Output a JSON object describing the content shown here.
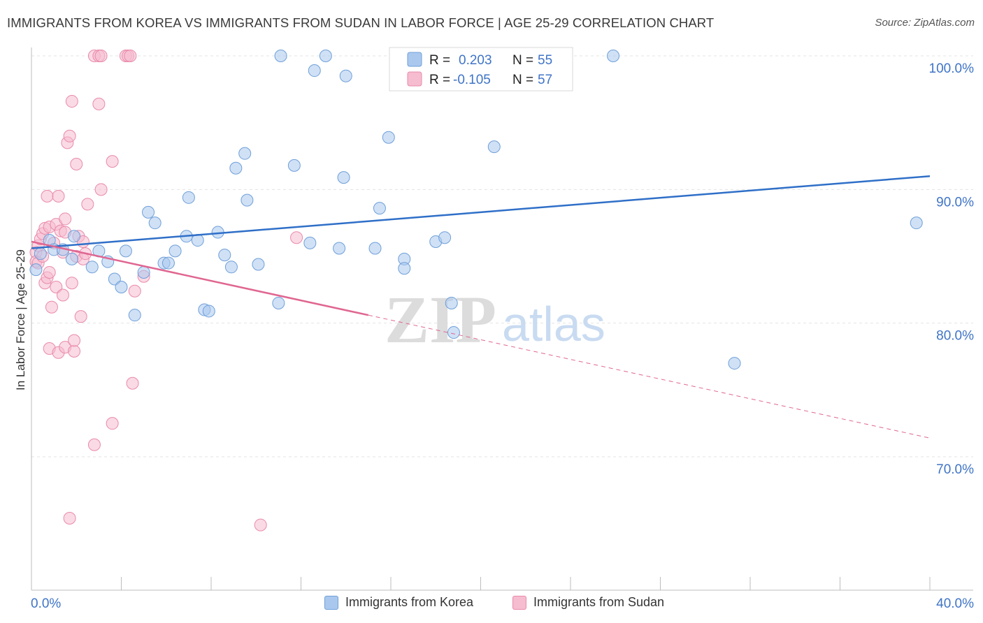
{
  "header": {
    "title": "IMMIGRANTS FROM KOREA VS IMMIGRANTS FROM SUDAN IN LABOR FORCE | AGE 25-29 CORRELATION CHART",
    "source": "Source: ZipAtlas.com"
  },
  "watermark": {
    "zip": "ZIP",
    "atlas": "atlas"
  },
  "legend_top": {
    "rows": [
      {
        "r_label": "R =",
        "r_value": "0.203",
        "n_label": "N =",
        "n_value": "55"
      },
      {
        "r_label": "R =",
        "r_value": "-0.105",
        "n_label": "N =",
        "n_value": "57"
      }
    ]
  },
  "colors": {
    "korea_fill": "#aac8ee",
    "korea_stroke": "#6f9fd8",
    "korea_line": "#2f6fc8",
    "sudan_fill": "#f6bccf",
    "sudan_stroke": "#e98aab",
    "sudan_line": "#e06691",
    "axis_text": "#3f74c7",
    "grid": "#e3e3e3"
  },
  "chart_data": {
    "type": "scatter",
    "title": "IMMIGRANTS FROM KOREA VS IMMIGRANTS FROM SUDAN IN LABOR FORCE | AGE 25-29 CORRELATION CHART",
    "xlabel": "",
    "ylabel": "In Labor Force | Age 25-29",
    "xlim": [
      0,
      40
    ],
    "ylim": [
      61.5,
      101.5
    ],
    "x_tick_labels": [
      "0.0%",
      "40.0%"
    ],
    "y_ticks": [
      70,
      80,
      90,
      100
    ],
    "y_tick_labels": [
      "70.0%",
      "80.0%",
      "90.0%",
      "100.0%"
    ],
    "grid": true,
    "series": [
      {
        "name": "Immigrants from Korea",
        "R": 0.203,
        "N": 55,
        "trend": {
          "x0": 0,
          "y0": 85.6,
          "x1": 40,
          "y1": 91.0
        },
        "points": [
          [
            0.2,
            84.0
          ],
          [
            0.4,
            85.2
          ],
          [
            0.8,
            86.2
          ],
          [
            1.0,
            85.5
          ],
          [
            1.4,
            85.5
          ],
          [
            1.8,
            84.8
          ],
          [
            1.9,
            86.5
          ],
          [
            2.7,
            84.2
          ],
          [
            3.0,
            85.4
          ],
          [
            3.4,
            84.6
          ],
          [
            3.7,
            83.3
          ],
          [
            4.0,
            82.7
          ],
          [
            4.2,
            85.4
          ],
          [
            4.6,
            80.6
          ],
          [
            5.0,
            83.8
          ],
          [
            5.2,
            88.3
          ],
          [
            5.5,
            87.5
          ],
          [
            5.9,
            84.5
          ],
          [
            6.1,
            84.5
          ],
          [
            6.4,
            85.4
          ],
          [
            6.9,
            86.5
          ],
          [
            7.0,
            89.4
          ],
          [
            7.4,
            86.2
          ],
          [
            7.7,
            81.0
          ],
          [
            7.9,
            80.9
          ],
          [
            8.3,
            86.8
          ],
          [
            8.6,
            85.1
          ],
          [
            8.9,
            84.2
          ],
          [
            9.1,
            91.6
          ],
          [
            9.5,
            92.7
          ],
          [
            9.6,
            89.2
          ],
          [
            10.1,
            84.4
          ],
          [
            11.0,
            81.5
          ],
          [
            11.1,
            100.0
          ],
          [
            11.7,
            91.8
          ],
          [
            12.4,
            86.0
          ],
          [
            12.6,
            98.9
          ],
          [
            13.1,
            100.0
          ],
          [
            13.7,
            85.6
          ],
          [
            13.9,
            90.9
          ],
          [
            14.0,
            98.5
          ],
          [
            15.3,
            85.6
          ],
          [
            15.5,
            88.6
          ],
          [
            15.9,
            93.9
          ],
          [
            16.6,
            84.8
          ],
          [
            16.6,
            84.1
          ],
          [
            17.2,
            100.0
          ],
          [
            18.0,
            86.1
          ],
          [
            18.4,
            86.4
          ],
          [
            18.7,
            81.5
          ],
          [
            18.8,
            79.3
          ],
          [
            20.6,
            93.2
          ],
          [
            25.9,
            100.0
          ],
          [
            31.3,
            77.0
          ],
          [
            39.4,
            87.5
          ]
        ]
      },
      {
        "name": "Immigrants from Sudan",
        "R": -0.105,
        "N": 57,
        "trend": {
          "x0": 0,
          "y0": 86.1,
          "x1": 15.0,
          "y1": 80.6
        },
        "trend_ext": {
          "x0": 15.0,
          "y0": 80.6,
          "x1": 40,
          "y1": 71.4
        },
        "points": [
          [
            0.2,
            85.3
          ],
          [
            0.2,
            84.6
          ],
          [
            0.3,
            85.8
          ],
          [
            0.3,
            84.5
          ],
          [
            0.4,
            86.3
          ],
          [
            0.5,
            85.0
          ],
          [
            0.5,
            86.7
          ],
          [
            0.6,
            87.1
          ],
          [
            0.6,
            83.0
          ],
          [
            0.7,
            83.4
          ],
          [
            0.7,
            89.5
          ],
          [
            0.8,
            87.2
          ],
          [
            0.8,
            83.8
          ],
          [
            0.8,
            78.1
          ],
          [
            0.9,
            81.2
          ],
          [
            1.0,
            86.0
          ],
          [
            1.1,
            87.4
          ],
          [
            1.1,
            82.7
          ],
          [
            1.2,
            89.5
          ],
          [
            1.2,
            77.8
          ],
          [
            1.3,
            86.9
          ],
          [
            1.4,
            85.3
          ],
          [
            1.4,
            82.1
          ],
          [
            1.5,
            87.8
          ],
          [
            1.5,
            86.8
          ],
          [
            1.5,
            78.2
          ],
          [
            1.6,
            93.5
          ],
          [
            1.7,
            65.4
          ],
          [
            1.7,
            94.0
          ],
          [
            1.8,
            96.6
          ],
          [
            1.8,
            83.0
          ],
          [
            1.9,
            77.9
          ],
          [
            1.9,
            78.7
          ],
          [
            2.0,
            85.0
          ],
          [
            2.0,
            91.9
          ],
          [
            2.1,
            86.5
          ],
          [
            2.2,
            80.5
          ],
          [
            2.3,
            84.8
          ],
          [
            2.3,
            86.1
          ],
          [
            2.4,
            85.2
          ],
          [
            2.5,
            88.9
          ],
          [
            2.8,
            100.0
          ],
          [
            2.8,
            70.9
          ],
          [
            3.0,
            100.0
          ],
          [
            3.0,
            96.4
          ],
          [
            3.1,
            100.0
          ],
          [
            3.1,
            90.0
          ],
          [
            3.6,
            72.5
          ],
          [
            3.6,
            92.1
          ],
          [
            4.2,
            100.0
          ],
          [
            4.3,
            100.0
          ],
          [
            4.4,
            100.0
          ],
          [
            4.5,
            75.5
          ],
          [
            4.6,
            82.4
          ],
          [
            5.0,
            83.5
          ],
          [
            10.2,
            64.9
          ],
          [
            11.8,
            86.4
          ]
        ]
      }
    ]
  },
  "legend_bottom": {
    "items": [
      {
        "label": "Immigrants from Korea"
      },
      {
        "label": "Immigrants from Sudan"
      }
    ]
  }
}
